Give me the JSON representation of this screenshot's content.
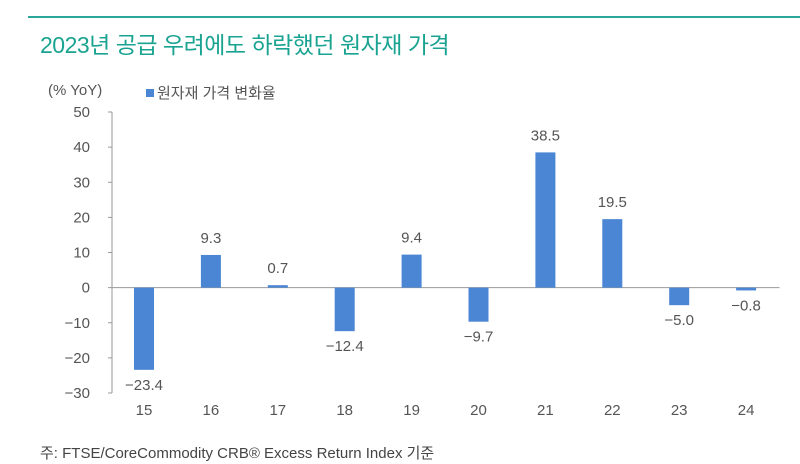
{
  "header": {
    "title": "2023년 공급 우려에도 하락했던 원자재 가격"
  },
  "footnote": "주: FTSE/CoreCommodity CRB® Excess Return Index 기준",
  "chart_data": {
    "type": "bar",
    "title": "2023년 공급 우려에도 하락했던 원자재 가격",
    "ylabel": "(% YoY)",
    "xlabel": "",
    "categories": [
      "15",
      "16",
      "17",
      "18",
      "19",
      "20",
      "21",
      "22",
      "23",
      "24"
    ],
    "series": [
      {
        "name": "원자재 가격 변화율",
        "values": [
          -23.4,
          9.3,
          0.7,
          -12.4,
          9.4,
          -9.7,
          38.5,
          19.5,
          -5.0,
          -0.8
        ],
        "labels": [
          "-23.4",
          "9.3",
          "0.7",
          "-12.4",
          "9.4",
          "-9.7",
          "38.5",
          "19.5",
          "-5.0",
          "-0.8"
        ]
      }
    ],
    "ylim": [
      -30,
      50
    ],
    "yticks": [
      "50",
      "40",
      "30",
      "20",
      "10",
      "0",
      "-10",
      "-20",
      "-30"
    ],
    "grid": false,
    "legend": "top-left",
    "colors": {
      "bar": "#4a86d4",
      "title": "#1aa391"
    }
  }
}
